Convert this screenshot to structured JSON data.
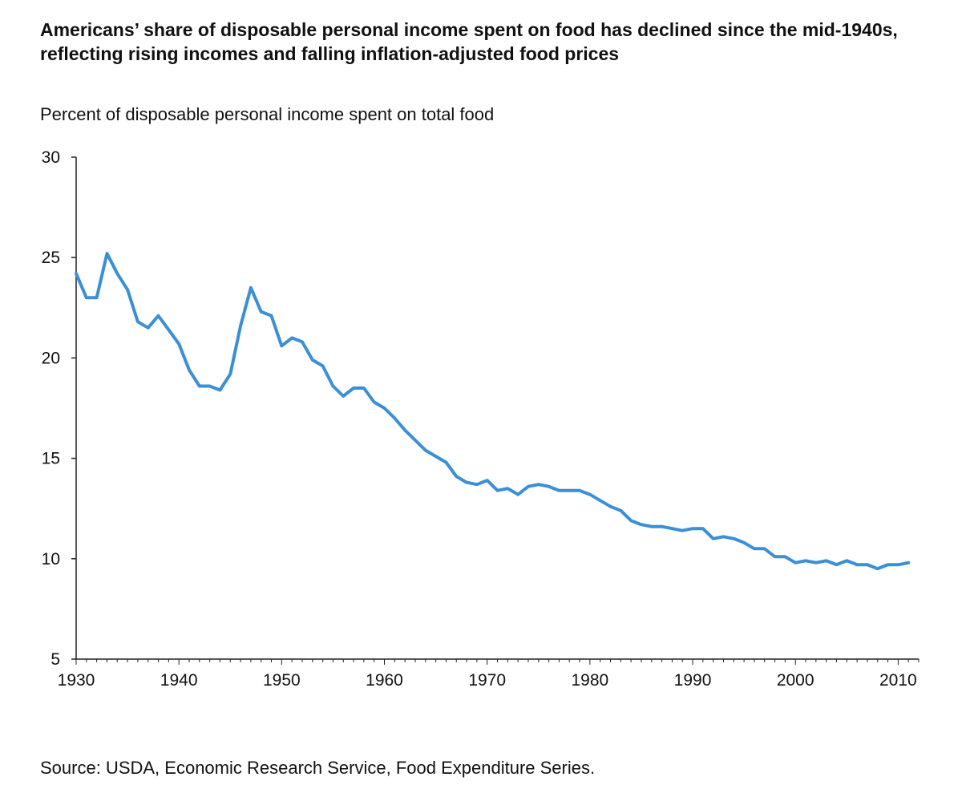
{
  "title": "Americans’ share of disposable personal income spent on food has declined since the mid-1940s, reflecting rising incomes and falling inflation-adjusted food prices",
  "ylabel": "Percent of disposable personal income spent on total food",
  "source": "Source: USDA, Economic Research Service, Food Expenditure Series.",
  "line_color": "#3a8fd6",
  "chart_data": {
    "type": "line",
    "title": "Americans’ share of disposable personal income spent on food has declined since the mid-1940s, reflecting rising incomes and falling inflation-adjusted food prices",
    "xlabel": "",
    "ylabel": "Percent of disposable personal income spent on total food",
    "xlim": [
      1930,
      2012
    ],
    "ylim": [
      5,
      30
    ],
    "xticks": [
      1930,
      1940,
      1950,
      1960,
      1970,
      1980,
      1990,
      2000,
      2010
    ],
    "yticks": [
      5,
      10,
      15,
      20,
      25,
      30
    ],
    "grid": false,
    "series": [
      {
        "x": [
          1930,
          1931,
          1932,
          1933,
          1934,
          1935,
          1936,
          1937,
          1938,
          1939,
          1940,
          1941,
          1942,
          1943,
          1944,
          1945,
          1946,
          1947,
          1948,
          1949,
          1950,
          1951,
          1952,
          1953,
          1954,
          1955,
          1956,
          1957,
          1958,
          1959,
          1960,
          1961,
          1962,
          1963,
          1964,
          1965,
          1966,
          1967,
          1968,
          1969,
          1970,
          1971,
          1972,
          1973,
          1974,
          1975,
          1976,
          1977,
          1978,
          1979,
          1980,
          1981,
          1982,
          1983,
          1984,
          1985,
          1986,
          1987,
          1988,
          1989,
          1990,
          1991,
          1992,
          1993,
          1994,
          1995,
          1996,
          1997,
          1998,
          1999,
          2000,
          2001,
          2002,
          2003,
          2004,
          2005,
          2006,
          2007,
          2008,
          2009,
          2010,
          2011
        ],
        "values": [
          24.2,
          23.0,
          23.0,
          25.2,
          24.2,
          23.4,
          21.8,
          21.5,
          22.1,
          21.4,
          20.7,
          19.4,
          18.6,
          18.6,
          18.4,
          19.2,
          21.6,
          23.5,
          22.3,
          22.1,
          20.6,
          21.0,
          20.8,
          19.9,
          19.6,
          18.6,
          18.1,
          18.5,
          18.5,
          17.8,
          17.5,
          17.0,
          16.4,
          15.9,
          15.4,
          15.1,
          14.8,
          14.1,
          13.8,
          13.7,
          13.9,
          13.4,
          13.5,
          13.2,
          13.6,
          13.7,
          13.6,
          13.4,
          13.4,
          13.4,
          13.2,
          12.9,
          12.6,
          12.4,
          11.9,
          11.7,
          11.6,
          11.6,
          11.5,
          11.4,
          11.5,
          11.5,
          11.0,
          11.1,
          11.0,
          10.8,
          10.5,
          10.5,
          10.1,
          10.1,
          9.8,
          9.9,
          9.8,
          9.9,
          9.7,
          9.9,
          9.7,
          9.7,
          9.5,
          9.7,
          9.7,
          9.8
        ]
      }
    ]
  }
}
